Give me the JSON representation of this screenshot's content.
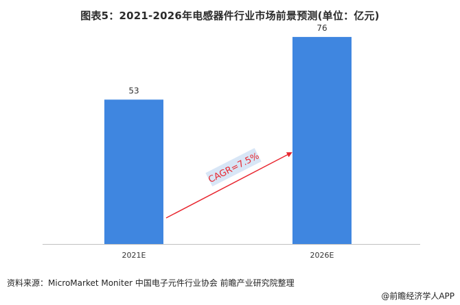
{
  "title": "图表5：2021-2026年电感器件行业市场前景预测(单位：亿元)",
  "source": "资料来源：MicroMarket Moniter 中国电子元件行业协会 前瞻产业研究院整理",
  "brand": "@前瞻经济学人APP",
  "annotation": {
    "text": "CAGR=7.5%"
  },
  "colors": {
    "bar": "#3f86e0",
    "arrow": "#e8262f",
    "cagr_box": "#d8e6f6",
    "cagr_text": "#e8262f"
  },
  "chart_data": {
    "type": "bar",
    "title": "图表5：2021-2026年电感器件行业市场前景预测(单位：亿元)",
    "categories": [
      "2021E",
      "2026E"
    ],
    "values": [
      53,
      76
    ],
    "data_labels": [
      "53",
      "76"
    ],
    "xlabel": "",
    "ylabel": "",
    "ylim": [
      0,
      80
    ],
    "grid": false,
    "legend": "none"
  }
}
